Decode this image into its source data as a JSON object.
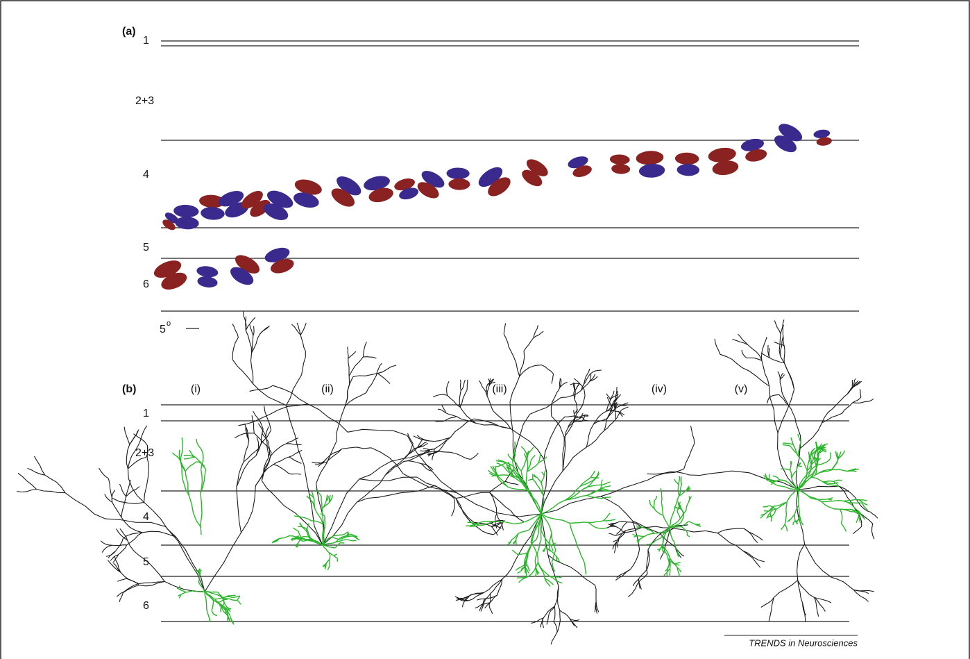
{
  "panel_a": {
    "label": "(a)",
    "layers": [
      "1",
      "2+3",
      "4",
      "5",
      "6"
    ],
    "scale_label": {
      "base": "5",
      "sup": "o"
    }
  },
  "panel_b": {
    "label": "(b)",
    "cells": [
      "(i)",
      "(ii)",
      "(iii)",
      "(iv)",
      "(v)"
    ],
    "layers": [
      "1",
      "2+3",
      "4",
      "5",
      "6"
    ]
  },
  "footer": "TRENDS in Neurosciences"
}
